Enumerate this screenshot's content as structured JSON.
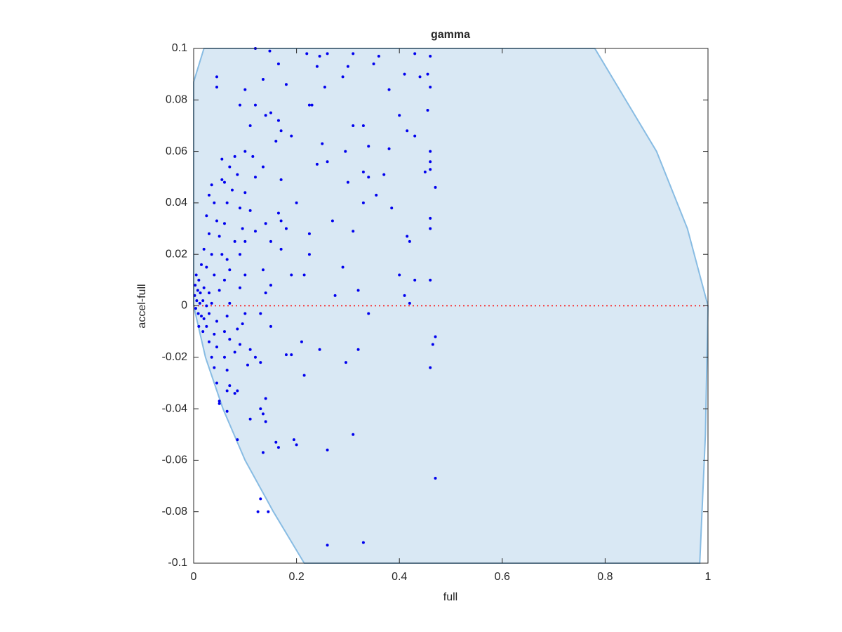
{
  "chart_data": {
    "type": "scatter",
    "title": "gamma",
    "xlabel": "full",
    "ylabel": "accel-full",
    "xlim": [
      0,
      1
    ],
    "ylim": [
      -0.1,
      0.1
    ],
    "xticks": [
      0,
      0.2,
      0.4,
      0.6,
      0.8,
      1
    ],
    "yticks": [
      -0.1,
      -0.08,
      -0.06,
      -0.04,
      -0.02,
      0,
      0.02,
      0.04,
      0.06,
      0.08,
      0.1
    ],
    "color": "#0000ee",
    "area": {
      "color": "#d9e8f4",
      "edge": "#88bce3",
      "x": [
        0,
        0.02,
        0.78,
        0.9,
        0.96,
        1,
        0.995,
        0.984,
        0.215,
        0.155,
        0.1,
        0.057,
        0.023,
        0
      ],
      "y": [
        0.087,
        0.1,
        0.1,
        0.06,
        0.03,
        0,
        -0.05,
        -0.1,
        -0.1,
        -0.08,
        -0.06,
        -0.04,
        -0.02,
        0
      ]
    },
    "hline": {
      "y": 0,
      "color": "#ff0000"
    },
    "x": [
      0.12,
      0.148,
      0.22,
      0.245,
      0.26,
      0.31,
      0.36,
      0.43,
      0.46,
      0.045,
      0.045,
      0.135,
      0.165,
      0.24,
      0.255,
      0.29,
      0.3,
      0.35,
      0.41,
      0.44,
      0.455,
      0.46,
      0.1,
      0.18,
      0.225,
      0.23,
      0.38,
      0.09,
      0.12,
      0.15,
      0.14,
      0.455,
      0.4,
      0.11,
      0.165,
      0.17,
      0.19,
      0.31,
      0.33,
      0.415,
      0.43,
      0.1,
      0.08,
      0.055,
      0.115,
      0.16,
      0.25,
      0.295,
      0.34,
      0.38,
      0.46,
      0.46,
      0.07,
      0.085,
      0.12,
      0.135,
      0.24,
      0.26,
      0.3,
      0.33,
      0.37,
      0.45,
      0.46,
      0.47,
      0.035,
      0.055,
      0.06,
      0.075,
      0.1,
      0.17,
      0.34,
      0.355,
      0.03,
      0.04,
      0.065,
      0.09,
      0.11,
      0.165,
      0.17,
      0.2,
      0.33,
      0.385,
      0.025,
      0.045,
      0.06,
      0.095,
      0.12,
      0.14,
      0.18,
      0.27,
      0.46,
      0.46,
      0.03,
      0.05,
      0.08,
      0.1,
      0.15,
      0.225,
      0.31,
      0.415,
      0.42,
      0.02,
      0.035,
      0.055,
      0.065,
      0.09,
      0.17,
      0.225,
      0.015,
      0.025,
      0.04,
      0.07,
      0.1,
      0.135,
      0.06,
      0.19,
      0.29,
      0.4,
      0.43,
      0.46,
      0.005,
      0.01,
      0.003,
      0.008,
      0.013,
      0.02,
      0.03,
      0.05,
      0.09,
      0.14,
      0.15,
      0.215,
      0.275,
      0.32,
      0.41,
      0.002,
      0.006,
      0.012,
      0.018,
      0.025,
      0.035,
      0.07,
      0.42,
      0.004,
      0.009,
      0.015,
      0.02,
      0.03,
      0.045,
      0.065,
      0.1,
      0.13,
      0.34,
      0.01,
      0.018,
      0.025,
      0.04,
      0.06,
      0.085,
      0.095,
      0.15,
      0.03,
      0.045,
      0.07,
      0.09,
      0.11,
      0.21,
      0.47,
      0.465,
      0.035,
      0.06,
      0.08,
      0.12,
      0.18,
      0.19,
      0.245,
      0.32,
      0.04,
      0.065,
      0.105,
      0.13,
      0.215,
      0.296,
      0.46,
      0.045,
      0.07,
      0.085,
      0.08,
      0.065,
      0.14,
      0.05,
      0.05,
      0.13,
      0.135,
      0.065,
      0.11,
      0.14,
      0.085,
      0.16,
      0.195,
      0.2,
      0.165,
      0.31,
      0.135,
      0.26,
      0.47,
      0.13,
      0.125,
      0.145,
      0.26,
      0.33
    ],
    "y": [
      0.1,
      0.099,
      0.098,
      0.097,
      0.098,
      0.098,
      0.097,
      0.098,
      0.097,
      0.089,
      0.085,
      0.088,
      0.094,
      0.093,
      0.085,
      0.089,
      0.093,
      0.094,
      0.09,
      0.089,
      0.09,
      0.085,
      0.084,
      0.086,
      0.078,
      0.078,
      0.084,
      0.078,
      0.078,
      0.075,
      0.074,
      0.076,
      0.074,
      0.07,
      0.072,
      0.068,
      0.066,
      0.07,
      0.07,
      0.068,
      0.066,
      0.06,
      0.058,
      0.057,
      0.058,
      0.064,
      0.063,
      0.06,
      0.062,
      0.061,
      0.06,
      0.056,
      0.054,
      0.051,
      0.05,
      0.054,
      0.055,
      0.056,
      0.048,
      0.052,
      0.051,
      0.052,
      0.053,
      0.046,
      0.047,
      0.049,
      0.048,
      0.045,
      0.044,
      0.049,
      0.05,
      0.043,
      0.043,
      0.04,
      0.04,
      0.038,
      0.037,
      0.036,
      0.033,
      0.04,
      0.04,
      0.038,
      0.035,
      0.033,
      0.032,
      0.03,
      0.029,
      0.032,
      0.03,
      0.033,
      0.034,
      0.03,
      0.028,
      0.027,
      0.025,
      0.025,
      0.025,
      0.028,
      0.029,
      0.027,
      0.025,
      0.022,
      0.02,
      0.02,
      0.018,
      0.02,
      0.022,
      0.02,
      0.016,
      0.015,
      0.012,
      0.014,
      0.012,
      0.014,
      0.01,
      0.012,
      0.015,
      0.012,
      0.01,
      0.01,
      0.012,
      0.01,
      0.008,
      0.006,
      0.005,
      0.007,
      0.005,
      0.006,
      0.007,
      0.005,
      0.008,
      0.012,
      0.004,
      0.006,
      0.004,
      0.004,
      0.002,
      0.001,
      0.002,
      0.0,
      0.001,
      0.001,
      0.001,
      -0.001,
      -0.003,
      -0.004,
      -0.005,
      -0.003,
      -0.006,
      -0.004,
      -0.003,
      -0.003,
      -0.003,
      -0.008,
      -0.01,
      -0.008,
      -0.011,
      -0.01,
      -0.009,
      -0.007,
      -0.008,
      -0.014,
      -0.016,
      -0.013,
      -0.015,
      -0.017,
      -0.014,
      -0.012,
      -0.015,
      -0.02,
      -0.02,
      -0.018,
      -0.02,
      -0.019,
      -0.019,
      -0.017,
      -0.017,
      -0.024,
      -0.025,
      -0.023,
      -0.022,
      -0.027,
      -0.022,
      -0.024,
      -0.03,
      -0.031,
      -0.033,
      -0.034,
      -0.033,
      -0.036,
      -0.037,
      -0.038,
      -0.04,
      -0.042,
      -0.041,
      -0.044,
      -0.045,
      -0.052,
      -0.053,
      -0.052,
      -0.054,
      -0.055,
      -0.05,
      -0.057,
      -0.056,
      -0.067,
      -0.075,
      -0.08,
      -0.08,
      -0.093,
      -0.092
    ]
  }
}
